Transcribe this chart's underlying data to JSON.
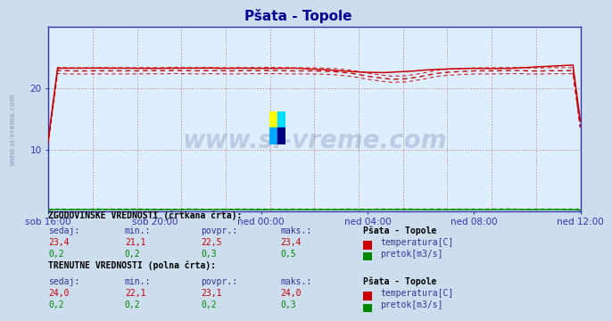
{
  "title": "Pšata - Topole",
  "title_color": "#000099",
  "bg_color": "#ccdded",
  "plot_bg_color": "#ddeeff",
  "grid_color": "#cc8888",
  "axis_color": "#3333bb",
  "text_color": "#333399",
  "x_labels": [
    "sob 16:00",
    "sob 20:00",
    "ned 00:00",
    "ned 04:00",
    "ned 08:00",
    "ned 12:00"
  ],
  "x_ticks_norm": [
    0.0,
    0.2,
    0.4,
    0.6,
    0.8,
    1.0
  ],
  "ylim": [
    0,
    30
  ],
  "yticks": [
    10,
    20
  ],
  "temp_color": "#cc0000",
  "flow_color": "#008800",
  "watermark_text": "www.si-vreme.com",
  "watermark_color": "#223366",
  "watermark_alpha": 0.18,
  "sidebar_text": "www.si-vreme.com",
  "sidebar_color": "#223366",
  "sidebar_alpha": 0.25,
  "hist_label": "ZGODOVINSKE VREDNOSTI (črtkana črta):",
  "curr_label": "TRENUTNE VREDNOSTI (polna črta):",
  "col_headers": [
    "sedaj:",
    "min.:",
    "povpr.:",
    "maks.:"
  ],
  "station_label": "Pšata - Topole",
  "hist_temp": {
    "sedaj": "23,4",
    "min": "21,1",
    "povpr": "22,5",
    "maks": "23,4",
    "name": "temperatura[C]"
  },
  "hist_flow": {
    "sedaj": "0,2",
    "min": "0,2",
    "povpr": "0,3",
    "maks": "0,5",
    "name": "pretok[m3/s]"
  },
  "curr_temp": {
    "sedaj": "24,0",
    "min": "22,1",
    "povpr": "23,1",
    "maks": "24,0",
    "name": "temperatura[C]"
  },
  "curr_flow": {
    "sedaj": "0,2",
    "min": "0,2",
    "povpr": "0,2",
    "maks": "0,3",
    "name": "pretok[m3/s]"
  },
  "n_points": 288
}
